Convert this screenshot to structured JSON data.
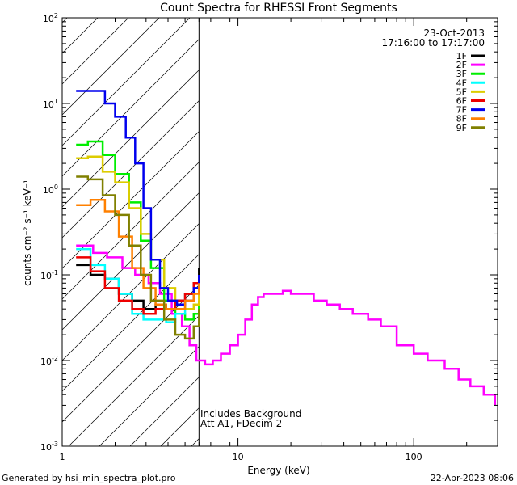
{
  "chart_data": {
    "type": "line",
    "title": "Count Spectra for RHESSI Front Segments",
    "xlabel": "Energy (keV)",
    "ylabel": "counts cm⁻² s⁻¹ keV⁻¹",
    "xscale": "log",
    "yscale": "log",
    "xlim": [
      1,
      300
    ],
    "ylim": [
      0.001,
      100
    ],
    "x_ticks": [
      {
        "value": 1,
        "label": "1"
      },
      {
        "value": 10,
        "label": "10"
      },
      {
        "value": 100,
        "label": "100"
      }
    ],
    "y_ticks": [
      {
        "value": 0.001,
        "base": "10",
        "exp": "-3"
      },
      {
        "value": 0.01,
        "base": "10",
        "exp": "-2"
      },
      {
        "value": 0.1,
        "base": "10",
        "exp": "-1"
      },
      {
        "value": 1,
        "base": "10",
        "exp": "0"
      },
      {
        "value": 10,
        "base": "10",
        "exp": "1"
      },
      {
        "value": 100,
        "base": "10",
        "exp": "2"
      }
    ],
    "date": "23-Oct-2013",
    "time_range": "17:16:00 to 17:17:00",
    "hatched_region_keV": [
      1,
      6
    ],
    "annotations": [
      "Includes Background",
      "Att A1, FDecim 2"
    ],
    "series": [
      {
        "name": "1F",
        "color": "#000000",
        "x": [
          1.2,
          1.45,
          1.75,
          2.1,
          2.5,
          2.9,
          3.4,
          3.9,
          4.4,
          5.0,
          5.6,
          6.0
        ],
        "y": [
          0.13,
          0.1,
          0.09,
          0.06,
          0.05,
          0.04,
          0.045,
          0.04,
          0.05,
          0.06,
          0.08,
          0.12
        ]
      },
      {
        "name": "2F",
        "color": "#ff00ff",
        "x": [
          1.2,
          1.5,
          1.8,
          2.2,
          2.6,
          3.1,
          3.6,
          4.2,
          4.8,
          5.3,
          5.8,
          6.5,
          7.2,
          8.0,
          9.0,
          10.0,
          11.0,
          12.0,
          13.0,
          14.0,
          16.0,
          18.0,
          20.0,
          23.0,
          27.0,
          32.0,
          38.0,
          45.0,
          55.0,
          65.0,
          80.0,
          100.0,
          120.0,
          150.0,
          180.0,
          210.0,
          250.0,
          290.0
        ],
        "y": [
          0.22,
          0.18,
          0.16,
          0.12,
          0.1,
          0.08,
          0.06,
          0.035,
          0.025,
          0.015,
          0.01,
          0.009,
          0.01,
          0.012,
          0.015,
          0.02,
          0.03,
          0.045,
          0.055,
          0.06,
          0.06,
          0.065,
          0.06,
          0.06,
          0.05,
          0.045,
          0.04,
          0.035,
          0.03,
          0.025,
          0.015,
          0.012,
          0.01,
          0.008,
          0.006,
          0.005,
          0.004,
          0.003
        ]
      },
      {
        "name": "3F",
        "color": "#00ee00",
        "x": [
          1.2,
          1.4,
          1.7,
          2.0,
          2.4,
          2.8,
          3.2,
          3.8,
          4.4,
          5.0,
          5.6,
          6.0
        ],
        "y": [
          3.3,
          3.6,
          2.5,
          1.5,
          0.7,
          0.25,
          0.12,
          0.05,
          0.035,
          0.03,
          0.035,
          0.05
        ]
      },
      {
        "name": "4F",
        "color": "#00ffff",
        "x": [
          1.2,
          1.45,
          1.75,
          2.1,
          2.5,
          2.9,
          3.4,
          3.9,
          4.4,
          5.0,
          5.6,
          6.0
        ],
        "y": [
          0.2,
          0.13,
          0.09,
          0.06,
          0.035,
          0.03,
          0.03,
          0.028,
          0.035,
          0.05,
          0.07,
          0.1
        ]
      },
      {
        "name": "5F",
        "color": "#ddcc00",
        "x": [
          1.2,
          1.4,
          1.7,
          2.0,
          2.4,
          2.8,
          3.2,
          3.8,
          4.4,
          5.0,
          5.6,
          6.0
        ],
        "y": [
          2.3,
          2.4,
          1.6,
          1.2,
          0.6,
          0.3,
          0.15,
          0.07,
          0.045,
          0.04,
          0.045,
          0.06
        ]
      },
      {
        "name": "6F",
        "color": "#ee0000",
        "x": [
          1.2,
          1.45,
          1.75,
          2.1,
          2.5,
          2.9,
          3.4,
          3.9,
          4.4,
          5.0,
          5.6,
          6.0
        ],
        "y": [
          0.16,
          0.11,
          0.07,
          0.05,
          0.04,
          0.035,
          0.04,
          0.04,
          0.05,
          0.06,
          0.08,
          0.1
        ]
      },
      {
        "name": "7F",
        "color": "#0000ee",
        "x": [
          1.2,
          1.45,
          1.75,
          2.0,
          2.3,
          2.6,
          2.9,
          3.2,
          3.6,
          4.0,
          4.5,
          5.0,
          5.6,
          6.0
        ],
        "y": [
          14.0,
          14.0,
          10.0,
          7.0,
          4.0,
          2.0,
          0.6,
          0.15,
          0.07,
          0.05,
          0.045,
          0.05,
          0.07,
          0.1
        ]
      },
      {
        "name": "8F",
        "color": "#ff8000",
        "x": [
          1.2,
          1.45,
          1.75,
          2.1,
          2.5,
          2.9,
          3.4,
          3.9,
          4.4,
          5.0,
          5.6,
          6.0
        ],
        "y": [
          0.65,
          0.75,
          0.55,
          0.28,
          0.12,
          0.07,
          0.045,
          0.04,
          0.04,
          0.05,
          0.06,
          0.08
        ]
      },
      {
        "name": "9F",
        "color": "#808000",
        "x": [
          1.2,
          1.4,
          1.7,
          2.0,
          2.4,
          2.8,
          3.2,
          3.8,
          4.4,
          5.0,
          5.6,
          6.0
        ],
        "y": [
          1.4,
          1.3,
          0.85,
          0.5,
          0.22,
          0.1,
          0.05,
          0.03,
          0.02,
          0.018,
          0.025,
          0.04
        ]
      }
    ]
  },
  "footer": {
    "left": "Generated by hsi_min_spectra_plot.pro",
    "right": "22-Apr-2023 08:06"
  }
}
